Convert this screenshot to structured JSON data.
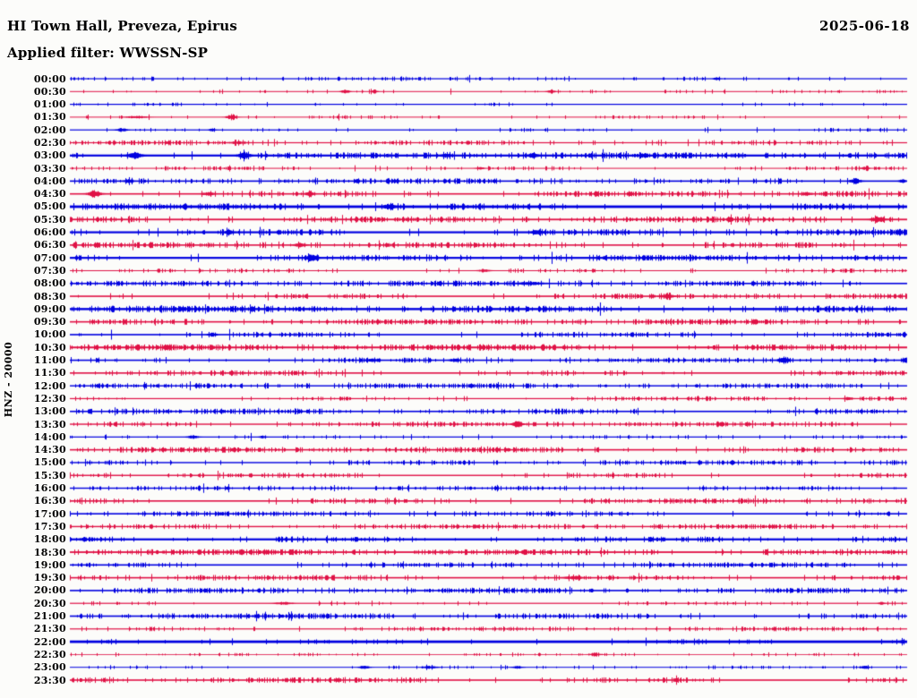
{
  "header": {
    "title": "HI Town Hall, Preveza, Epirus",
    "date": "2025-06-18",
    "filter": "Applied filter: WWSSN-SP"
  },
  "y_axis": {
    "channel_label": "HNZ - 20000"
  },
  "colors": {
    "trace_blue": "#0000e0",
    "trace_red": "#e01145",
    "text": "#000000",
    "background": "#fcfcfa"
  },
  "chart_data": {
    "type": "line",
    "subtype": "helicorder_dayplot",
    "title": "HI Town Hall, Preveza, Epirus",
    "date": "2025-06-18",
    "filter": "WWSSN-SP",
    "channel": "HNZ",
    "scale_value": 20000,
    "minutes_per_row": 30,
    "rows_count": 48,
    "row_color_cycle": [
      "blue",
      "red"
    ],
    "legend_position": "none",
    "grid": false,
    "event_format": "[x_fraction_along_row, half_amplitude_px, gaussian_width_px]",
    "rows": [
      {
        "time": "00:00",
        "color": "blue",
        "base": 0.6,
        "noise": 0.9,
        "density": 0.14,
        "events": [
          [
            0.773,
            1.2,
            3
          ]
        ]
      },
      {
        "time": "00:30",
        "color": "red",
        "base": 0.5,
        "noise": 0.8,
        "density": 0.1,
        "events": [
          [
            0.329,
            2.2,
            4
          ],
          [
            0.364,
            1.8,
            3
          ],
          [
            0.575,
            1.6,
            4
          ]
        ]
      },
      {
        "time": "01:00",
        "color": "blue",
        "base": 0.6,
        "noise": 0.7,
        "density": 0.08,
        "events": []
      },
      {
        "time": "01:30",
        "color": "red",
        "base": 0.5,
        "noise": 0.8,
        "density": 0.1,
        "events": [
          [
            0.193,
            3.2,
            5
          ],
          [
            0.08,
            1.2,
            10
          ]
        ]
      },
      {
        "time": "02:00",
        "color": "blue",
        "base": 0.6,
        "noise": 0.9,
        "density": 0.12,
        "events": [
          [
            0.062,
            1.7,
            5
          ],
          [
            0.17,
            1.3,
            3
          ]
        ]
      },
      {
        "time": "02:30",
        "color": "red",
        "base": 0.6,
        "noise": 1.2,
        "density": 0.28,
        "events": [
          [
            0.2,
            1.2,
            8
          ]
        ]
      },
      {
        "time": "03:00",
        "color": "blue",
        "base": 1.1,
        "noise": 1.3,
        "density": 0.34,
        "events": [
          [
            0.077,
            3.5,
            6
          ],
          [
            0.208,
            4.2,
            5
          ],
          [
            0.45,
            1.5,
            5
          ],
          [
            0.553,
            2.0,
            5
          ]
        ]
      },
      {
        "time": "03:30",
        "color": "red",
        "base": 0.5,
        "noise": 1.0,
        "density": 0.24,
        "events": [
          [
            0.49,
            1.3,
            4
          ],
          [
            0.95,
            1.4,
            4
          ]
        ]
      },
      {
        "time": "04:00",
        "color": "blue",
        "base": 0.8,
        "noise": 1.2,
        "density": 0.3,
        "events": [
          [
            0.07,
            1.8,
            4
          ],
          [
            0.939,
            3.0,
            5
          ],
          [
            0.995,
            1.8,
            3
          ]
        ]
      },
      {
        "time": "04:30",
        "color": "red",
        "base": 0.8,
        "noise": 1.3,
        "density": 0.34,
        "events": [
          [
            0.029,
            3.8,
            6
          ],
          [
            0.165,
            1.8,
            5
          ],
          [
            0.286,
            2.2,
            4
          ],
          [
            0.88,
            1.8,
            5
          ]
        ]
      },
      {
        "time": "05:00",
        "color": "blue",
        "base": 1.4,
        "noise": 1.2,
        "density": 0.28,
        "events": [
          [
            0.382,
            2.2,
            5
          ]
        ]
      },
      {
        "time": "05:30",
        "color": "red",
        "base": 0.9,
        "noise": 1.3,
        "density": 0.34,
        "events": [
          [
            0.966,
            3.0,
            6
          ]
        ]
      },
      {
        "time": "06:00",
        "color": "blue",
        "base": 1.1,
        "noise": 1.4,
        "density": 0.4,
        "events": [
          [
            0.559,
            2.0,
            5
          ],
          [
            0.19,
            1.4,
            4
          ]
        ]
      },
      {
        "time": "06:30",
        "color": "red",
        "base": 0.8,
        "noise": 1.3,
        "density": 0.34,
        "events": [
          [
            0.275,
            2.2,
            5
          ]
        ]
      },
      {
        "time": "07:00",
        "color": "blue",
        "base": 1.1,
        "noise": 1.2,
        "density": 0.3,
        "events": [
          [
            0.289,
            3.0,
            5
          ]
        ]
      },
      {
        "time": "07:30",
        "color": "red",
        "base": 0.5,
        "noise": 1.0,
        "density": 0.22,
        "events": [
          [
            0.495,
            2.0,
            5
          ]
        ]
      },
      {
        "time": "08:00",
        "color": "blue",
        "base": 0.8,
        "noise": 1.2,
        "density": 0.34,
        "events": [
          [
            0.55,
            1.4,
            12
          ]
        ]
      },
      {
        "time": "08:30",
        "color": "red",
        "base": 0.8,
        "noise": 1.2,
        "density": 0.34,
        "events": [
          [
            0.714,
            2.2,
            6
          ]
        ]
      },
      {
        "time": "09:00",
        "color": "blue",
        "base": 1.2,
        "noise": 1.3,
        "density": 0.4,
        "events": []
      },
      {
        "time": "09:30",
        "color": "red",
        "base": 0.8,
        "noise": 1.2,
        "density": 0.34,
        "events": []
      },
      {
        "time": "10:00",
        "color": "blue",
        "base": 0.8,
        "noise": 1.2,
        "density": 0.34,
        "events": [
          [
            0.17,
            1.6,
            4
          ]
        ]
      },
      {
        "time": "10:30",
        "color": "red",
        "base": 1.0,
        "noise": 1.3,
        "density": 0.4,
        "events": []
      },
      {
        "time": "11:00",
        "color": "blue",
        "base": 0.8,
        "noise": 1.1,
        "density": 0.25,
        "events": [
          [
            0.853,
            3.8,
            5
          ],
          [
            0.36,
            1.4,
            6
          ],
          [
            0.46,
            1.4,
            5
          ]
        ]
      },
      {
        "time": "11:30",
        "color": "red",
        "base": 0.8,
        "noise": 1.2,
        "density": 0.34,
        "events": []
      },
      {
        "time": "12:00",
        "color": "blue",
        "base": 0.7,
        "noise": 1.1,
        "density": 0.3,
        "events": [
          [
            0.152,
            1.5,
            3
          ]
        ]
      },
      {
        "time": "12:30",
        "color": "red",
        "base": 0.6,
        "noise": 1.0,
        "density": 0.25,
        "events": [
          [
            0.93,
            1.3,
            4
          ]
        ]
      },
      {
        "time": "13:00",
        "color": "blue",
        "base": 0.8,
        "noise": 1.2,
        "density": 0.35,
        "events": []
      },
      {
        "time": "13:30",
        "color": "red",
        "base": 0.7,
        "noise": 1.1,
        "density": 0.28,
        "events": [
          [
            0.535,
            3.0,
            5
          ]
        ]
      },
      {
        "time": "14:00",
        "color": "blue",
        "base": 0.6,
        "noise": 0.9,
        "density": 0.18,
        "events": [
          [
            0.147,
            1.5,
            5
          ],
          [
            0.23,
            1.2,
            3
          ]
        ]
      },
      {
        "time": "14:30",
        "color": "red",
        "base": 0.8,
        "noise": 1.2,
        "density": 0.35,
        "events": []
      },
      {
        "time": "15:00",
        "color": "blue",
        "base": 0.7,
        "noise": 1.1,
        "density": 0.28,
        "events": []
      },
      {
        "time": "15:30",
        "color": "red",
        "base": 0.7,
        "noise": 1.1,
        "density": 0.3,
        "events": []
      },
      {
        "time": "16:00",
        "color": "blue",
        "base": 0.7,
        "noise": 1.0,
        "density": 0.22,
        "events": []
      },
      {
        "time": "16:30",
        "color": "red",
        "base": 0.8,
        "noise": 1.2,
        "density": 0.35,
        "events": []
      },
      {
        "time": "17:00",
        "color": "blue",
        "base": 0.8,
        "noise": 1.1,
        "density": 0.3,
        "events": []
      },
      {
        "time": "17:30",
        "color": "red",
        "base": 0.7,
        "noise": 1.1,
        "density": 0.28,
        "events": []
      },
      {
        "time": "18:00",
        "color": "blue",
        "base": 1.1,
        "noise": 1.1,
        "density": 0.3,
        "events": []
      },
      {
        "time": "18:30",
        "color": "red",
        "base": 0.9,
        "noise": 1.2,
        "density": 0.38,
        "events": []
      },
      {
        "time": "19:00",
        "color": "blue",
        "base": 0.8,
        "noise": 1.1,
        "density": 0.3,
        "events": []
      },
      {
        "time": "19:30",
        "color": "red",
        "base": 0.8,
        "noise": 1.2,
        "density": 0.38,
        "events": [
          [
            0.602,
            1.6,
            8
          ]
        ]
      },
      {
        "time": "20:00",
        "color": "blue",
        "base": 0.8,
        "noise": 1.2,
        "density": 0.35,
        "events": []
      },
      {
        "time": "20:30",
        "color": "red",
        "base": 0.6,
        "noise": 0.9,
        "density": 0.14,
        "events": [
          [
            0.255,
            1.2,
            8
          ],
          [
            0.97,
            1.4,
            3
          ]
        ]
      },
      {
        "time": "21:00",
        "color": "blue",
        "base": 0.8,
        "noise": 1.2,
        "density": 0.35,
        "events": []
      },
      {
        "time": "21:30",
        "color": "red",
        "base": 0.6,
        "noise": 1.0,
        "density": 0.22,
        "events": [
          [
            0.49,
            1.2,
            2
          ]
        ]
      },
      {
        "time": "22:00",
        "color": "blue",
        "base": 1.4,
        "noise": 0.8,
        "density": 0.12,
        "events": [
          [
            0.995,
            1.5,
            2
          ]
        ]
      },
      {
        "time": "22:30",
        "color": "red",
        "base": 0.4,
        "noise": 0.8,
        "density": 0.14,
        "events": [
          [
            0.628,
            1.3,
            6
          ]
        ]
      },
      {
        "time": "23:00",
        "color": "blue",
        "base": 0.5,
        "noise": 0.8,
        "density": 0.14,
        "events": [
          [
            0.352,
            1.9,
            5
          ],
          [
            0.43,
            1.3,
            7
          ],
          [
            0.535,
            1.4,
            5
          ],
          [
            0.95,
            1.5,
            4
          ]
        ]
      },
      {
        "time": "23:30",
        "color": "red",
        "base": 0.8,
        "noise": 1.2,
        "density": 0.4,
        "events": []
      }
    ]
  }
}
